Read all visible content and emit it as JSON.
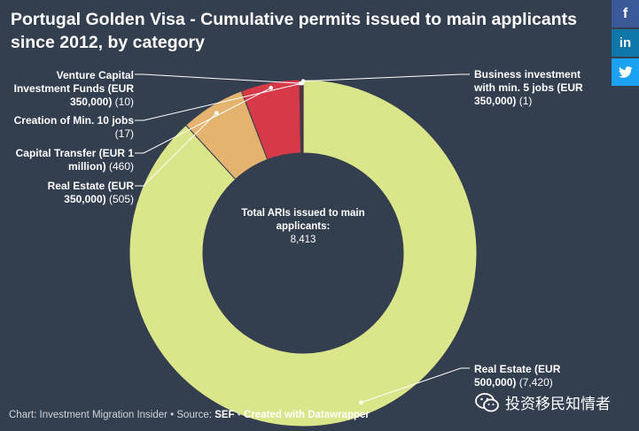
{
  "title": "Portugal Golden Visa - Cumulative permits issued to main applicants since 2012, by category",
  "center_label": {
    "title": "Total ARIs issued to main applicants:",
    "value": "8,413"
  },
  "footer": {
    "prefix": "Chart: Investment Migration Insider • Source: ",
    "source": "SEF",
    "sep": " • ",
    "credit": "Created with Datawrapper"
  },
  "watermark": "投资移民知情者",
  "social": {
    "facebook": "f",
    "linkedin": "in"
  },
  "chart_data": {
    "type": "pie",
    "donut": true,
    "slices": [
      {
        "name": "Real Estate (EUR 500,000)",
        "value_label": "(7,420)",
        "value": 7420,
        "color": "#dbe58a"
      },
      {
        "name": "Real Estate (EUR 350,000)",
        "value_label": "(505)",
        "value": 505,
        "color": "#e3b36f"
      },
      {
        "name": "Capital Transfer (EUR 1 million)",
        "value_label": "(460)",
        "value": 460,
        "color": "#d63a48"
      },
      {
        "name": "Creation of Min. 10 jobs",
        "value_label": "(17)",
        "value": 17,
        "color": "#7d1f2a"
      },
      {
        "name": "Venture Capital Investment Funds (EUR 350,000)",
        "value_label": "(10)",
        "value": 10,
        "color": "#b02a3a"
      },
      {
        "name": "Business investment with min. 5 jobs (EUR 350,000)",
        "value_label": "(1)",
        "value": 1,
        "color": "#f0f0f0"
      }
    ]
  }
}
